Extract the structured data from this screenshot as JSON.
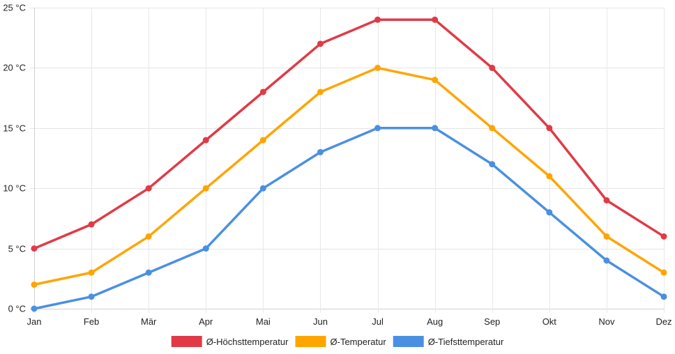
{
  "chart_data": {
    "type": "line",
    "title": "",
    "xlabel": "",
    "ylabel": "",
    "categories": [
      "Jan",
      "Feb",
      "Mär",
      "Apr",
      "Mai",
      "Jun",
      "Jul",
      "Aug",
      "Sep",
      "Okt",
      "Nov",
      "Dez"
    ],
    "ylim": [
      0,
      25
    ],
    "yticks": [
      0,
      5,
      10,
      15,
      20,
      25
    ],
    "ytick_labels": [
      "0 °C",
      "5 °C",
      "10 °C",
      "15 °C",
      "20 °C",
      "25 °C"
    ],
    "grid": true,
    "legend_position": "bottom",
    "series": [
      {
        "name": "Ø-Höchsttemperatur",
        "color": "#e13a46",
        "values": [
          5,
          7,
          10,
          14,
          18,
          22,
          24,
          24,
          20,
          15,
          9,
          6
        ]
      },
      {
        "name": "Ø-Temperatur",
        "color": "#ffa500",
        "values": [
          2,
          3,
          6,
          10,
          14,
          18,
          20,
          19,
          15,
          11,
          6,
          3
        ]
      },
      {
        "name": "Ø-Tiefsttemperatur",
        "color": "#4a90e2",
        "values": [
          0,
          1,
          3,
          5,
          10,
          13,
          15,
          15,
          12,
          8,
          4,
          1
        ]
      }
    ]
  }
}
